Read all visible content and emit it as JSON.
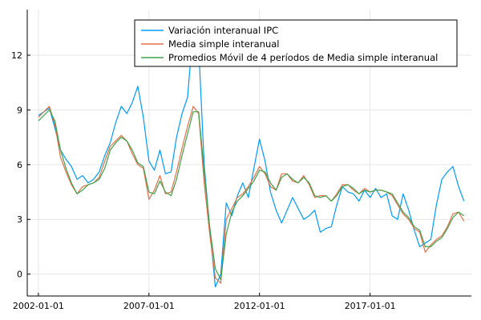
{
  "chart_data": {
    "type": "line",
    "title": "",
    "xlabel": "",
    "ylabel": "",
    "xlim": [
      "2001-07-01",
      "2021-08-01"
    ],
    "ylim": [
      -1.2,
      14.5
    ],
    "x_ticks": [
      "2002-01-01",
      "2007-01-01",
      "2012-01-01",
      "2017-01-01"
    ],
    "y_ticks": [
      0,
      3,
      6,
      9,
      12
    ],
    "grid": true,
    "legend_position": "top-right",
    "colors": {
      "ipc": "#009af9",
      "media": "#e26f46",
      "movil": "#3da44d",
      "axis": "#000000",
      "grid": "#e6e6e6"
    },
    "series": [
      {
        "name": "Variación interanual IPC",
        "key": "ipc",
        "points": [
          [
            "2002-01-01",
            8.7
          ],
          [
            "2002-07-01",
            9.1
          ],
          [
            "2002-10-01",
            8.0
          ],
          [
            "2003-01-01",
            6.8
          ],
          [
            "2003-04-01",
            6.3
          ],
          [
            "2003-07-01",
            5.9
          ],
          [
            "2003-10-01",
            5.2
          ],
          [
            "2004-01-01",
            5.4
          ],
          [
            "2004-04-01",
            5.0
          ],
          [
            "2004-07-01",
            5.2
          ],
          [
            "2004-10-01",
            5.6
          ],
          [
            "2005-01-01",
            6.5
          ],
          [
            "2005-04-01",
            7.2
          ],
          [
            "2005-07-01",
            8.3
          ],
          [
            "2005-10-01",
            9.2
          ],
          [
            "2006-01-01",
            8.8
          ],
          [
            "2006-04-01",
            9.4
          ],
          [
            "2006-07-01",
            10.3
          ],
          [
            "2006-10-01",
            8.6
          ],
          [
            "2007-01-01",
            6.2
          ],
          [
            "2007-04-01",
            5.7
          ],
          [
            "2007-07-01",
            6.8
          ],
          [
            "2007-10-01",
            5.5
          ],
          [
            "2008-01-01",
            5.6
          ],
          [
            "2008-04-01",
            7.5
          ],
          [
            "2008-07-01",
            8.8
          ],
          [
            "2008-10-01",
            9.7
          ],
          [
            "2009-01-01",
            13.5
          ],
          [
            "2009-04-01",
            12.5
          ],
          [
            "2009-07-01",
            6.0
          ],
          [
            "2009-10-01",
            2.5
          ],
          [
            "2010-01-01",
            -0.7
          ],
          [
            "2010-04-01",
            0.0
          ],
          [
            "2010-07-01",
            3.9
          ],
          [
            "2010-10-01",
            3.2
          ],
          [
            "2011-01-01",
            4.3
          ],
          [
            "2011-04-01",
            5.0
          ],
          [
            "2011-07-01",
            4.2
          ],
          [
            "2011-10-01",
            5.8
          ],
          [
            "2012-01-01",
            7.4
          ],
          [
            "2012-04-01",
            6.2
          ],
          [
            "2012-07-01",
            4.5
          ],
          [
            "2012-10-01",
            3.5
          ],
          [
            "2013-01-01",
            2.8
          ],
          [
            "2013-04-01",
            3.5
          ],
          [
            "2013-07-01",
            4.2
          ],
          [
            "2013-10-01",
            3.6
          ],
          [
            "2014-01-01",
            3.0
          ],
          [
            "2014-04-01",
            3.2
          ],
          [
            "2014-07-01",
            3.5
          ],
          [
            "2014-10-01",
            2.3
          ],
          [
            "2015-01-01",
            2.5
          ],
          [
            "2015-04-01",
            2.6
          ],
          [
            "2015-07-01",
            3.8
          ],
          [
            "2015-10-01",
            4.8
          ],
          [
            "2016-01-01",
            4.5
          ],
          [
            "2016-04-01",
            4.4
          ],
          [
            "2016-07-01",
            4.0
          ],
          [
            "2016-10-01",
            4.6
          ],
          [
            "2017-01-01",
            4.2
          ],
          [
            "2017-04-01",
            4.7
          ],
          [
            "2017-07-01",
            4.2
          ],
          [
            "2017-10-01",
            4.4
          ],
          [
            "2018-01-01",
            3.2
          ],
          [
            "2018-04-01",
            3.0
          ],
          [
            "2018-07-01",
            4.4
          ],
          [
            "2018-10-01",
            3.5
          ],
          [
            "2019-01-01",
            2.4
          ],
          [
            "2019-04-01",
            1.5
          ],
          [
            "2019-07-01",
            1.7
          ],
          [
            "2019-10-01",
            1.9
          ],
          [
            "2020-01-01",
            3.8
          ],
          [
            "2020-04-01",
            5.2
          ],
          [
            "2020-07-01",
            5.6
          ],
          [
            "2020-10-01",
            5.9
          ],
          [
            "2021-01-01",
            4.8
          ],
          [
            "2021-04-01",
            4.0
          ]
        ]
      },
      {
        "name": "Media simple interanual",
        "key": "media",
        "points": [
          [
            "2002-01-01",
            8.6
          ],
          [
            "2002-07-01",
            9.2
          ],
          [
            "2002-10-01",
            8.2
          ],
          [
            "2003-01-01",
            6.4
          ],
          [
            "2003-04-01",
            5.6
          ],
          [
            "2003-07-01",
            4.9
          ],
          [
            "2003-10-01",
            4.4
          ],
          [
            "2004-01-01",
            4.8
          ],
          [
            "2004-04-01",
            4.9
          ],
          [
            "2004-07-01",
            5.0
          ],
          [
            "2004-10-01",
            5.3
          ],
          [
            "2005-01-01",
            6.2
          ],
          [
            "2005-04-01",
            7.0
          ],
          [
            "2005-07-01",
            7.3
          ],
          [
            "2005-10-01",
            7.6
          ],
          [
            "2006-01-01",
            7.3
          ],
          [
            "2006-04-01",
            6.6
          ],
          [
            "2006-07-01",
            6.0
          ],
          [
            "2006-10-01",
            5.8
          ],
          [
            "2007-01-01",
            4.1
          ],
          [
            "2007-04-01",
            4.6
          ],
          [
            "2007-07-01",
            5.4
          ],
          [
            "2007-10-01",
            4.4
          ],
          [
            "2008-01-01",
            4.5
          ],
          [
            "2008-04-01",
            5.6
          ],
          [
            "2008-07-01",
            6.9
          ],
          [
            "2008-10-01",
            8.1
          ],
          [
            "2009-01-01",
            9.2
          ],
          [
            "2009-04-01",
            8.8
          ],
          [
            "2009-07-01",
            5.0
          ],
          [
            "2009-10-01",
            2.2
          ],
          [
            "2010-01-01",
            -0.2
          ],
          [
            "2010-04-01",
            -0.5
          ],
          [
            "2010-07-01",
            3.0
          ],
          [
            "2010-10-01",
            3.6
          ],
          [
            "2011-01-01",
            4.2
          ],
          [
            "2011-04-01",
            4.4
          ],
          [
            "2011-07-01",
            4.8
          ],
          [
            "2011-10-01",
            5.3
          ],
          [
            "2012-01-01",
            5.9
          ],
          [
            "2012-04-01",
            5.5
          ],
          [
            "2012-07-01",
            4.8
          ],
          [
            "2012-10-01",
            4.6
          ],
          [
            "2013-01-01",
            5.5
          ],
          [
            "2013-04-01",
            5.5
          ],
          [
            "2013-07-01",
            5.1
          ],
          [
            "2013-10-01",
            5.0
          ],
          [
            "2014-01-01",
            5.4
          ],
          [
            "2014-04-01",
            4.9
          ],
          [
            "2014-07-01",
            4.2
          ],
          [
            "2014-10-01",
            4.3
          ],
          [
            "2015-01-01",
            4.3
          ],
          [
            "2015-04-01",
            4.0
          ],
          [
            "2015-07-01",
            4.4
          ],
          [
            "2015-10-01",
            4.9
          ],
          [
            "2016-01-01",
            4.9
          ],
          [
            "2016-04-01",
            4.6
          ],
          [
            "2016-07-01",
            4.4
          ],
          [
            "2016-10-01",
            4.7
          ],
          [
            "2017-01-01",
            4.5
          ],
          [
            "2017-04-01",
            4.6
          ],
          [
            "2017-07-01",
            4.6
          ],
          [
            "2017-10-01",
            4.5
          ],
          [
            "2018-01-01",
            4.3
          ],
          [
            "2018-04-01",
            3.8
          ],
          [
            "2018-07-01",
            3.3
          ],
          [
            "2018-10-01",
            3.0
          ],
          [
            "2019-01-01",
            2.5
          ],
          [
            "2019-04-01",
            2.3
          ],
          [
            "2019-07-01",
            1.2
          ],
          [
            "2019-10-01",
            1.6
          ],
          [
            "2020-01-01",
            1.9
          ],
          [
            "2020-04-01",
            2.1
          ],
          [
            "2020-07-01",
            2.6
          ],
          [
            "2020-10-01",
            3.3
          ],
          [
            "2021-01-01",
            3.4
          ],
          [
            "2021-04-01",
            2.9
          ]
        ]
      },
      {
        "name": "Promedios Móvil de 4 períodos de Media simple interanual",
        "key": "movil",
        "points": [
          [
            "2002-01-01",
            8.4
          ],
          [
            "2002-07-01",
            9.0
          ],
          [
            "2002-10-01",
            8.4
          ],
          [
            "2003-01-01",
            6.8
          ],
          [
            "2003-04-01",
            5.8
          ],
          [
            "2003-07-01",
            5.0
          ],
          [
            "2003-10-01",
            4.4
          ],
          [
            "2004-01-01",
            4.6
          ],
          [
            "2004-04-01",
            4.9
          ],
          [
            "2004-07-01",
            5.0
          ],
          [
            "2004-10-01",
            5.2
          ],
          [
            "2005-01-01",
            5.8
          ],
          [
            "2005-04-01",
            6.8
          ],
          [
            "2005-07-01",
            7.2
          ],
          [
            "2005-10-01",
            7.5
          ],
          [
            "2006-01-01",
            7.3
          ],
          [
            "2006-04-01",
            6.8
          ],
          [
            "2006-07-01",
            6.1
          ],
          [
            "2006-10-01",
            5.9
          ],
          [
            "2007-01-01",
            4.5
          ],
          [
            "2007-04-01",
            4.4
          ],
          [
            "2007-07-01",
            5.1
          ],
          [
            "2007-10-01",
            4.5
          ],
          [
            "2008-01-01",
            4.3
          ],
          [
            "2008-04-01",
            5.2
          ],
          [
            "2008-07-01",
            6.5
          ],
          [
            "2008-10-01",
            7.7
          ],
          [
            "2009-01-01",
            8.9
          ],
          [
            "2009-04-01",
            8.9
          ],
          [
            "2009-07-01",
            5.6
          ],
          [
            "2009-10-01",
            2.6
          ],
          [
            "2010-01-01",
            0.3
          ],
          [
            "2010-04-01",
            -0.3
          ],
          [
            "2010-07-01",
            2.2
          ],
          [
            "2010-10-01",
            3.4
          ],
          [
            "2011-01-01",
            4.0
          ],
          [
            "2011-04-01",
            4.3
          ],
          [
            "2011-07-01",
            4.7
          ],
          [
            "2011-10-01",
            5.1
          ],
          [
            "2012-01-01",
            5.7
          ],
          [
            "2012-04-01",
            5.6
          ],
          [
            "2012-07-01",
            5.0
          ],
          [
            "2012-10-01",
            4.6
          ],
          [
            "2013-01-01",
            5.3
          ],
          [
            "2013-04-01",
            5.5
          ],
          [
            "2013-07-01",
            5.2
          ],
          [
            "2013-10-01",
            5.0
          ],
          [
            "2014-01-01",
            5.3
          ],
          [
            "2014-04-01",
            5.0
          ],
          [
            "2014-07-01",
            4.3
          ],
          [
            "2014-10-01",
            4.2
          ],
          [
            "2015-01-01",
            4.3
          ],
          [
            "2015-04-01",
            4.0
          ],
          [
            "2015-07-01",
            4.3
          ],
          [
            "2015-10-01",
            4.8
          ],
          [
            "2016-01-01",
            4.9
          ],
          [
            "2016-04-01",
            4.7
          ],
          [
            "2016-07-01",
            4.4
          ],
          [
            "2016-10-01",
            4.6
          ],
          [
            "2017-01-01",
            4.5
          ],
          [
            "2017-04-01",
            4.6
          ],
          [
            "2017-07-01",
            4.6
          ],
          [
            "2017-10-01",
            4.5
          ],
          [
            "2018-01-01",
            4.4
          ],
          [
            "2018-04-01",
            3.9
          ],
          [
            "2018-07-01",
            3.4
          ],
          [
            "2018-10-01",
            3.1
          ],
          [
            "2019-01-01",
            2.6
          ],
          [
            "2019-04-01",
            2.4
          ],
          [
            "2019-07-01",
            1.5
          ],
          [
            "2019-10-01",
            1.5
          ],
          [
            "2020-01-01",
            1.8
          ],
          [
            "2020-04-01",
            2.0
          ],
          [
            "2020-07-01",
            2.5
          ],
          [
            "2020-10-01",
            3.1
          ],
          [
            "2021-01-01",
            3.4
          ],
          [
            "2021-04-01",
            3.2
          ]
        ]
      }
    ]
  }
}
